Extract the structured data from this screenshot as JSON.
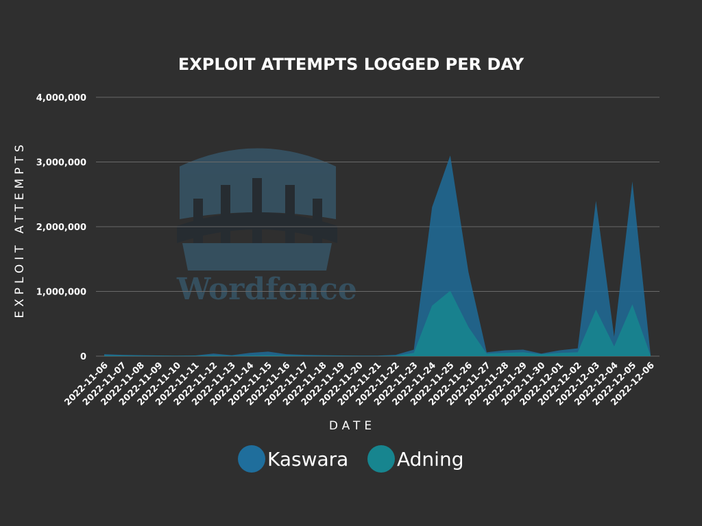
{
  "colors": {
    "background": "#2f2f2f",
    "gridline": "#6a6a6a",
    "kaswara": "#1f6e9c",
    "adning": "#17858f",
    "watermark": "#3b6a86"
  },
  "watermark": {
    "logo_text": "Wordfence",
    "icon": "castle-gate-icon"
  },
  "chart_data": {
    "type": "area",
    "title": "EXPLOIT ATTEMPTS LOGGED PER DAY",
    "xlabel": "DATE",
    "ylabel": "EXPLOIT ATTEMPTS",
    "ylim": [
      0,
      4000000
    ],
    "yticks": [
      0,
      1000000,
      2000000,
      3000000,
      4000000
    ],
    "ytick_labels": [
      "0",
      "1,000,000",
      "2,000,000",
      "3,000,000",
      "4,000,000"
    ],
    "grid": true,
    "legend_position": "bottom",
    "categories": [
      "2022-11-06",
      "2022-11-07",
      "2022-11-08",
      "2022-11-09",
      "2022-11-10",
      "2022-11-11",
      "2022-11-12",
      "2022-11-13",
      "2022-11-14",
      "2022-11-15",
      "2022-11-16",
      "2022-11-17",
      "2022-11-18",
      "2022-11-19",
      "2022-11-20",
      "2022-11-21",
      "2022-11-22",
      "2022-11-23",
      "2022-11-24",
      "2022-11-25",
      "2022-11-26",
      "2022-11-27",
      "2022-11-28",
      "2022-11-29",
      "2022-11-30",
      "2022-12-01",
      "2022-12-02",
      "2022-12-03",
      "2022-12-04",
      "2022-12-05",
      "2022-12-06"
    ],
    "series": [
      {
        "name": "Kaswara",
        "values": [
          30000,
          20000,
          15000,
          10000,
          8000,
          10000,
          40000,
          15000,
          50000,
          70000,
          30000,
          20000,
          15000,
          10000,
          8000,
          8000,
          20000,
          100000,
          2300000,
          3100000,
          1300000,
          60000,
          90000,
          100000,
          40000,
          90000,
          120000,
          2400000,
          300000,
          2700000,
          20000
        ]
      },
      {
        "name": "Adning",
        "values": [
          10000,
          8000,
          5000,
          5000,
          4000,
          5000,
          10000,
          5000,
          10000,
          15000,
          10000,
          5000,
          5000,
          4000,
          3000,
          3000,
          5000,
          50000,
          780000,
          1010000,
          450000,
          40000,
          50000,
          60000,
          30000,
          50000,
          60000,
          720000,
          150000,
          800000,
          10000
        ]
      }
    ]
  }
}
